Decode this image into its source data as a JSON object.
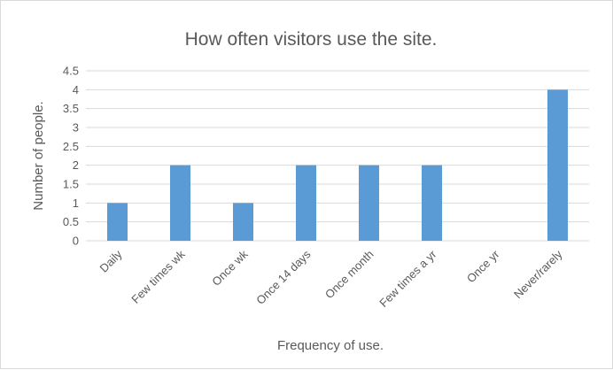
{
  "chart_data": {
    "type": "bar",
    "title": "How often visitors use the site.",
    "xlabel": "Frequency of use.",
    "ylabel": "Number of people.",
    "categories": [
      "Daily",
      "Few times wk",
      "Once wk",
      "Once 14 days",
      "Once month",
      "Few times a yr",
      "Once yr",
      "Never/rarely"
    ],
    "values": [
      1,
      2,
      1,
      2,
      2,
      2,
      0,
      4
    ],
    "ylim": [
      0,
      4.5
    ],
    "yticks": [
      "0",
      "0.5",
      "1",
      "1.5",
      "2",
      "2.5",
      "3",
      "3.5",
      "4",
      "4.5"
    ],
    "grid": true,
    "legend": "none",
    "colors": {
      "bar": "#5b9bd5",
      "grid": "#d9d9d9",
      "axis": "#d9d9d9",
      "text": "#595959"
    }
  }
}
